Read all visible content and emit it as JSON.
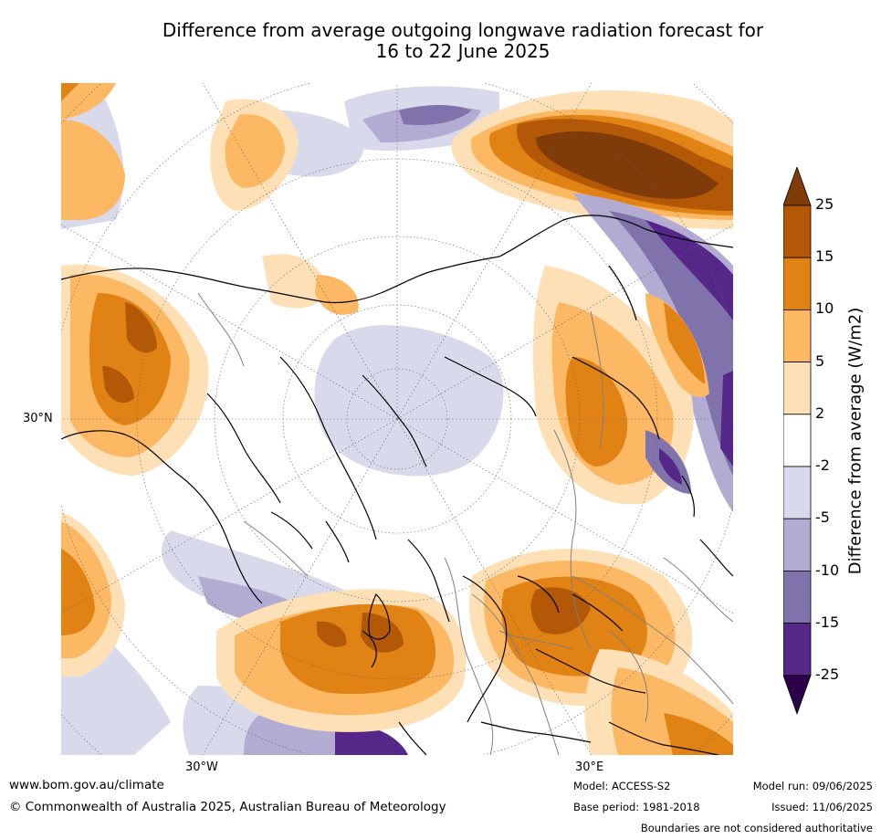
{
  "title_line1": "Difference from average outgoing longwave radiation forecast for",
  "title_line2": "16 to 22 June 2025",
  "map": {
    "projection": "north-polar-stereographic",
    "lat_label": "30°N",
    "lon_labels": [
      "30°W",
      "30°E"
    ]
  },
  "colorbar": {
    "title": "Difference from average (W/m2)",
    "ticks": [
      "25",
      "15",
      "10",
      "5",
      "2",
      "-2",
      "-5",
      "-10",
      "-15",
      "-25"
    ],
    "colors": [
      "#7f3b08",
      "#b35806",
      "#e08214",
      "#fdb863",
      "#fee0b6",
      "#ffffff",
      "#d8daeb",
      "#b2abd2",
      "#8073ac",
      "#542788",
      "#2d004b"
    ]
  },
  "footer": {
    "website": "www.bom.gov.au/climate",
    "copyright": "© Commonwealth of Australia 2025, Australian Bureau of Meteorology",
    "model": "Model: ACCESS-S2",
    "base_period": "Base period: 1981-2018",
    "model_run": "Model run: 09/06/2025",
    "issued": "Issued: 11/06/2025",
    "disclaimer": "Boundaries are not considered authoritative"
  }
}
